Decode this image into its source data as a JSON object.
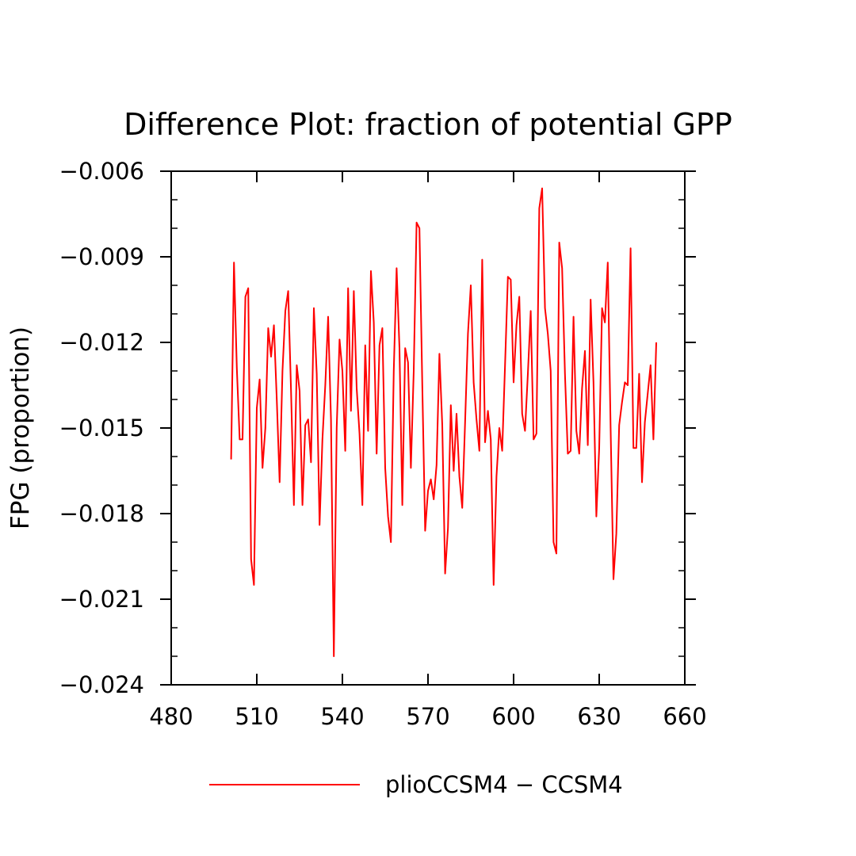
{
  "chart_data": {
    "type": "line",
    "title": "Difference Plot: fraction of potential GPP",
    "xlabel": "",
    "ylabel": "FPG  (proportion)",
    "xlim": [
      480,
      660
    ],
    "ylim": [
      -0.024,
      -0.006
    ],
    "x_ticks": [
      480,
      510,
      540,
      570,
      600,
      630,
      660
    ],
    "x_tick_labels": [
      "480",
      "510",
      "540",
      "570",
      "600",
      "630",
      "660"
    ],
    "y_ticks": [
      -0.024,
      -0.021,
      -0.018,
      -0.015,
      -0.012,
      -0.009,
      -0.006
    ],
    "y_tick_labels": [
      "−0.024",
      "−0.021",
      "−0.018",
      "−0.015",
      "−0.012",
      "−0.009",
      "−0.006"
    ],
    "grid": false,
    "legend_position": "bottom-center",
    "series": [
      {
        "name": "plioCCSM4 − CCSM4",
        "color": "#ff0000",
        "x": [
          501,
          502,
          503,
          504,
          505,
          506,
          507,
          508,
          509,
          510,
          511,
          512,
          513,
          514,
          515,
          516,
          517,
          518,
          519,
          520,
          521,
          522,
          523,
          524,
          525,
          526,
          527,
          528,
          529,
          530,
          531,
          532,
          533,
          534,
          535,
          536,
          537,
          538,
          539,
          540,
          541,
          542,
          543,
          544,
          545,
          546,
          547,
          548,
          549,
          550,
          551,
          552,
          553,
          554,
          555,
          556,
          557,
          558,
          559,
          560,
          561,
          562,
          563,
          564,
          565,
          566,
          567,
          568,
          569,
          570,
          571,
          572,
          573,
          574,
          575,
          576,
          577,
          578,
          579,
          580,
          581,
          582,
          583,
          584,
          585,
          586,
          587,
          588,
          589,
          590,
          591,
          592,
          593,
          594,
          595,
          596,
          597,
          598,
          599,
          600,
          601,
          602,
          603,
          604,
          605,
          606,
          607,
          608,
          609,
          610,
          611,
          612,
          613,
          614,
          615,
          616,
          617,
          618,
          619,
          620,
          621,
          622,
          623,
          624,
          625,
          626,
          627,
          628,
          629,
          630,
          631,
          632,
          633,
          634,
          635,
          636,
          637,
          638,
          639,
          640,
          641,
          642,
          643,
          644,
          645,
          646,
          647,
          648,
          649,
          650
        ],
        "y": [
          -0.0161,
          -0.0092,
          -0.0129,
          -0.0154,
          -0.0154,
          -0.0104,
          -0.0101,
          -0.0196,
          -0.0205,
          -0.0143,
          -0.0133,
          -0.0164,
          -0.015,
          -0.0115,
          -0.0125,
          -0.0114,
          -0.014,
          -0.0169,
          -0.013,
          -0.0109,
          -0.0102,
          -0.0137,
          -0.0177,
          -0.0128,
          -0.0137,
          -0.0177,
          -0.0149,
          -0.0147,
          -0.0162,
          -0.0108,
          -0.0131,
          -0.0184,
          -0.0154,
          -0.0135,
          -0.0111,
          -0.0147,
          -0.023,
          -0.015,
          -0.0119,
          -0.013,
          -0.0158,
          -0.0101,
          -0.0144,
          -0.0102,
          -0.0136,
          -0.0152,
          -0.0177,
          -0.0121,
          -0.0151,
          -0.0095,
          -0.0113,
          -0.0159,
          -0.0121,
          -0.0115,
          -0.0164,
          -0.0181,
          -0.019,
          -0.013,
          -0.0094,
          -0.0122,
          -0.0177,
          -0.0122,
          -0.0127,
          -0.0164,
          -0.013,
          -0.0078,
          -0.008,
          -0.0135,
          -0.0186,
          -0.0172,
          -0.0168,
          -0.0175,
          -0.0163,
          -0.0124,
          -0.0149,
          -0.0201,
          -0.0185,
          -0.0142,
          -0.0165,
          -0.0145,
          -0.0167,
          -0.0178,
          -0.0148,
          -0.0117,
          -0.01,
          -0.0134,
          -0.0147,
          -0.0158,
          -0.0091,
          -0.0155,
          -0.0144,
          -0.0154,
          -0.0205,
          -0.0167,
          -0.015,
          -0.0158,
          -0.0128,
          -0.0097,
          -0.0098,
          -0.0134,
          -0.0114,
          -0.0104,
          -0.0145,
          -0.0151,
          -0.0131,
          -0.0109,
          -0.0154,
          -0.0152,
          -0.0073,
          -0.0066,
          -0.0108,
          -0.0117,
          -0.013,
          -0.019,
          -0.0194,
          -0.0085,
          -0.0094,
          -0.0131,
          -0.0159,
          -0.0158,
          -0.0111,
          -0.0151,
          -0.0159,
          -0.0136,
          -0.0123,
          -0.0156,
          -0.0105,
          -0.0134,
          -0.0181,
          -0.0157,
          -0.0108,
          -0.0113,
          -0.0092,
          -0.015,
          -0.0203,
          -0.0187,
          -0.0149,
          -0.0141,
          -0.0134,
          -0.0135,
          -0.0087,
          -0.0157,
          -0.0157,
          -0.0131,
          -0.0169,
          -0.0148,
          -0.0138,
          -0.0128,
          -0.0154,
          -0.012
        ]
      }
    ]
  }
}
